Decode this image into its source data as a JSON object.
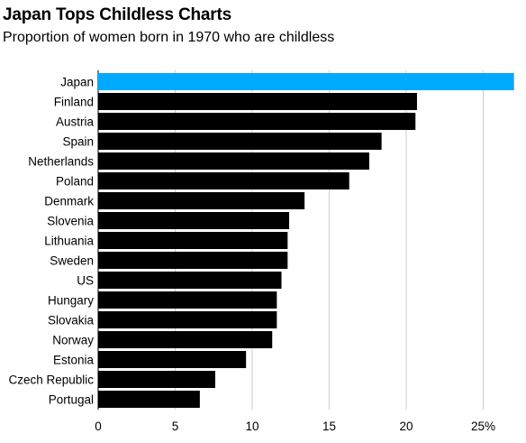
{
  "chart_data": {
    "type": "bar",
    "orientation": "horizontal",
    "title": "Japan Tops Childless Charts",
    "subtitle": "Proportion of women born in 1970 who are childless",
    "categories": [
      "Japan",
      "Finland",
      "Austria",
      "Spain",
      "Netherlands",
      "Poland",
      "Denmark",
      "Slovenia",
      "Lithuania",
      "Sweden",
      "US",
      "Hungary",
      "Slovakia",
      "Norway",
      "Estonia",
      "Czech Republic",
      "Portugal"
    ],
    "values": [
      27.0,
      20.7,
      20.6,
      18.4,
      17.6,
      16.3,
      13.4,
      12.4,
      12.3,
      12.3,
      11.9,
      11.6,
      11.6,
      11.3,
      9.6,
      7.6,
      6.6
    ],
    "unit": "%",
    "xlim": [
      0,
      27
    ],
    "x_ticks": [
      0,
      5,
      10,
      15,
      20,
      25
    ],
    "x_tick_labels": [
      "0",
      "5",
      "10",
      "15",
      "20",
      "25%"
    ],
    "grid": "vertical",
    "highlight_category": "Japan",
    "colors": {
      "highlight": "#00aaff",
      "bar": "#000000",
      "grid": "#cccccc",
      "baseline": "#000000"
    }
  }
}
